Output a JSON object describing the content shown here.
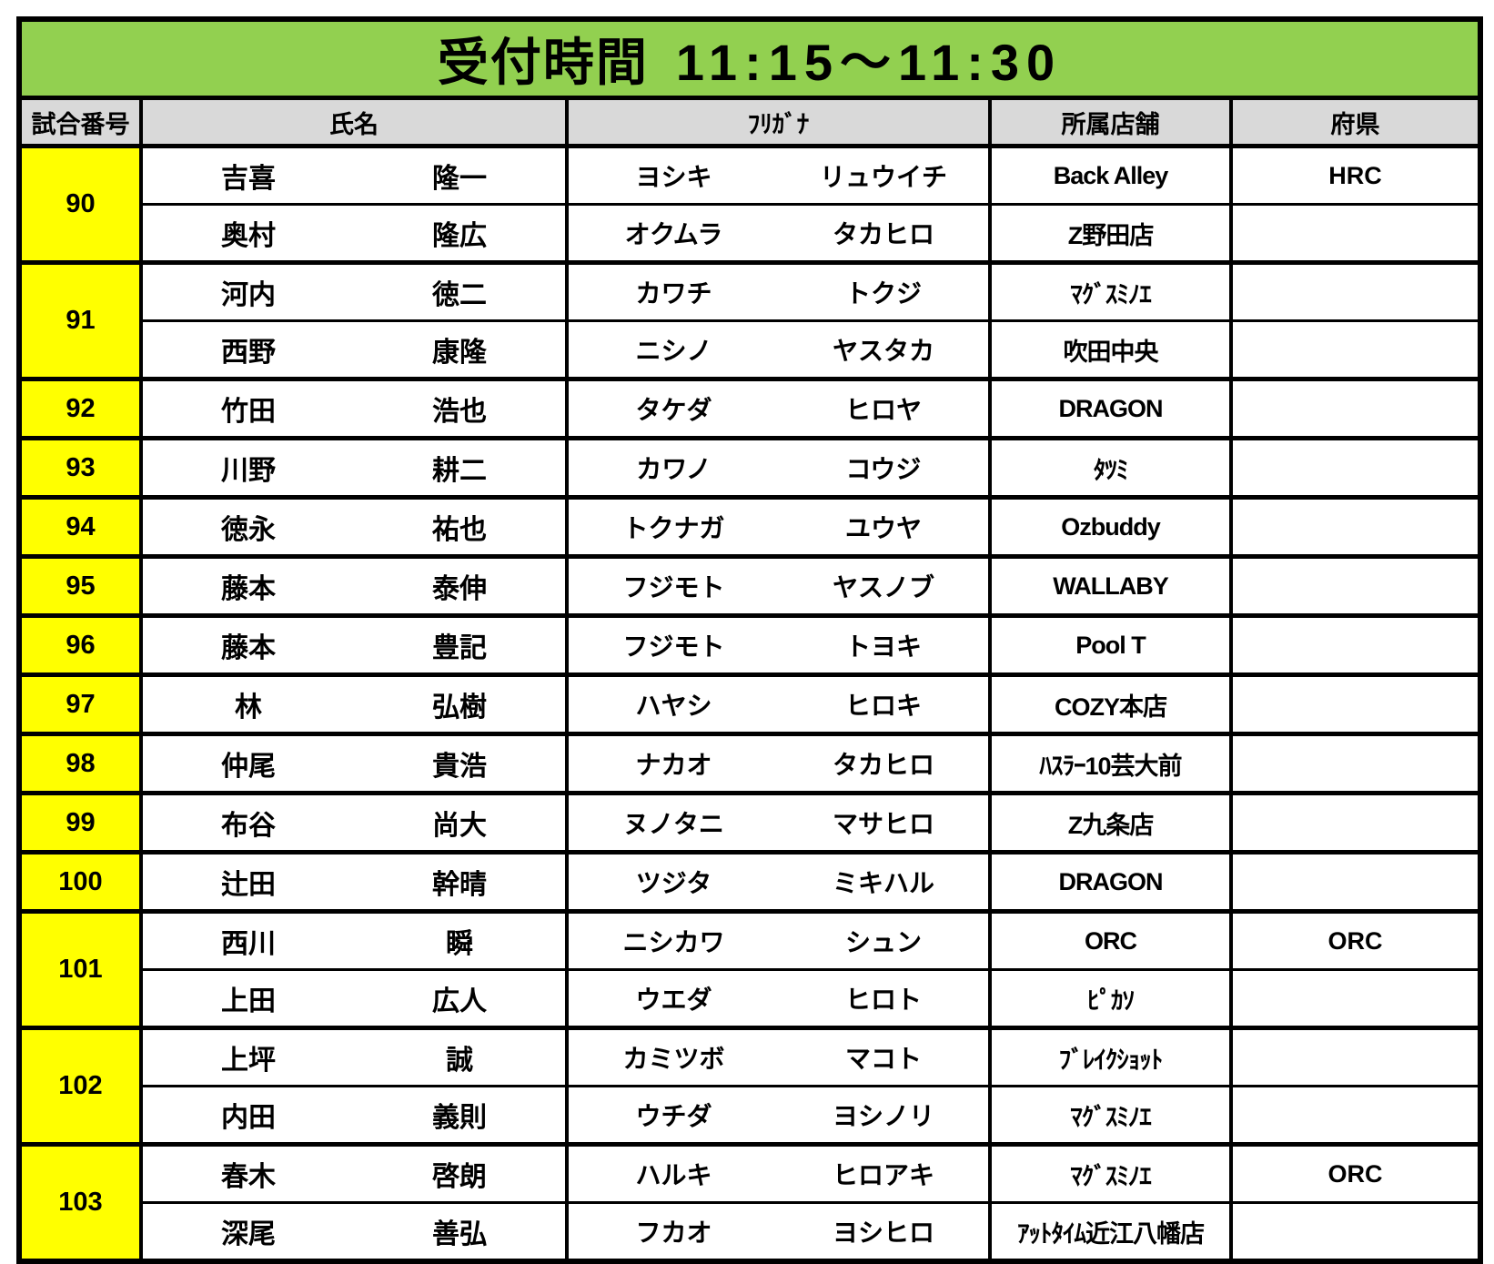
{
  "title": {
    "label": "受付時間",
    "time": "11:15～11:30"
  },
  "colors": {
    "title_bg": "#92d050",
    "header_bg": "#d9d9d9",
    "match_number_bg": "#ffff00",
    "border": "#000000",
    "page_bg": "#ffffff"
  },
  "headers": {
    "match": "試合番号",
    "name": "氏名",
    "kana": "ﾌﾘｶﾞﾅ",
    "store": "所属店舗",
    "pref": "府県"
  },
  "matches": [
    {
      "number": "90",
      "players": [
        {
          "last": "吉喜",
          "first": "隆一",
          "kana_last": "ヨシキ",
          "kana_first": "リュウイチ",
          "store": "Back Alley",
          "pref": "HRC"
        },
        {
          "last": "奥村",
          "first": "隆広",
          "kana_last": "オクムラ",
          "kana_first": "タカヒロ",
          "store": "Z野田店",
          "pref": ""
        }
      ]
    },
    {
      "number": "91",
      "players": [
        {
          "last": "河内",
          "first": "徳二",
          "kana_last": "カワチ",
          "kana_first": "トクジ",
          "store": "ﾏｸﾞｽﾐﾉｴ",
          "pref": ""
        },
        {
          "last": "西野",
          "first": "康隆",
          "kana_last": "ニシノ",
          "kana_first": "ヤスタカ",
          "store": "吹田中央",
          "pref": ""
        }
      ]
    },
    {
      "number": "92",
      "players": [
        {
          "last": "竹田",
          "first": "浩也",
          "kana_last": "タケダ",
          "kana_first": "ヒロヤ",
          "store": "DRAGON",
          "pref": ""
        }
      ]
    },
    {
      "number": "93",
      "players": [
        {
          "last": "川野",
          "first": "耕二",
          "kana_last": "カワノ",
          "kana_first": "コウジ",
          "store": "ﾀﾂﾐ",
          "pref": ""
        }
      ]
    },
    {
      "number": "94",
      "players": [
        {
          "last": "徳永",
          "first": "祐也",
          "kana_last": "トクナガ",
          "kana_first": "ユウヤ",
          "store": "Ozbuddy",
          "pref": ""
        }
      ]
    },
    {
      "number": "95",
      "players": [
        {
          "last": "藤本",
          "first": "泰伸",
          "kana_last": "フジモト",
          "kana_first": "ヤスノブ",
          "store": "WALLABY",
          "pref": ""
        }
      ]
    },
    {
      "number": "96",
      "players": [
        {
          "last": "藤本",
          "first": "豊記",
          "kana_last": "フジモト",
          "kana_first": "トヨキ",
          "store": "Pool T",
          "pref": ""
        }
      ]
    },
    {
      "number": "97",
      "players": [
        {
          "last": "林",
          "first": "弘樹",
          "kana_last": "ハヤシ",
          "kana_first": "ヒロキ",
          "store": "COZY本店",
          "pref": ""
        }
      ]
    },
    {
      "number": "98",
      "players": [
        {
          "last": "仲尾",
          "first": "貴浩",
          "kana_last": "ナカオ",
          "kana_first": "タカヒロ",
          "store": "ﾊｽﾗｰ10芸大前",
          "pref": ""
        }
      ]
    },
    {
      "number": "99",
      "players": [
        {
          "last": "布谷",
          "first": "尚大",
          "kana_last": "ヌノタニ",
          "kana_first": "マサヒロ",
          "store": "Z九条店",
          "pref": ""
        }
      ]
    },
    {
      "number": "100",
      "players": [
        {
          "last": "辻田",
          "first": "幹晴",
          "kana_last": "ツジタ",
          "kana_first": "ミキハル",
          "store": "DRAGON",
          "pref": ""
        }
      ]
    },
    {
      "number": "101",
      "players": [
        {
          "last": "西川",
          "first": "瞬",
          "kana_last": "ニシカワ",
          "kana_first": "シュン",
          "store": "ORC",
          "pref": "ORC"
        },
        {
          "last": "上田",
          "first": "広人",
          "kana_last": "ウエダ",
          "kana_first": "ヒロト",
          "store": "ﾋﾟｶｿ",
          "pref": ""
        }
      ]
    },
    {
      "number": "102",
      "players": [
        {
          "last": "上坪",
          "first": "誠",
          "kana_last": "カミツボ",
          "kana_first": "マコト",
          "store": "ﾌﾞﾚｲｸｼｮｯﾄ",
          "pref": ""
        },
        {
          "last": "内田",
          "first": "義則",
          "kana_last": "ウチダ",
          "kana_first": "ヨシノリ",
          "store": "ﾏｸﾞｽﾐﾉｴ",
          "pref": ""
        }
      ]
    },
    {
      "number": "103",
      "players": [
        {
          "last": "春木",
          "first": "啓朗",
          "kana_last": "ハルキ",
          "kana_first": "ヒロアキ",
          "store": "ﾏｸﾞｽﾐﾉｴ",
          "pref": "ORC"
        },
        {
          "last": "深尾",
          "first": "善弘",
          "kana_last": "フカオ",
          "kana_first": "ヨシヒロ",
          "store": "ｱｯﾄﾀｲﾑ近江八幡店",
          "pref": ""
        }
      ]
    }
  ]
}
